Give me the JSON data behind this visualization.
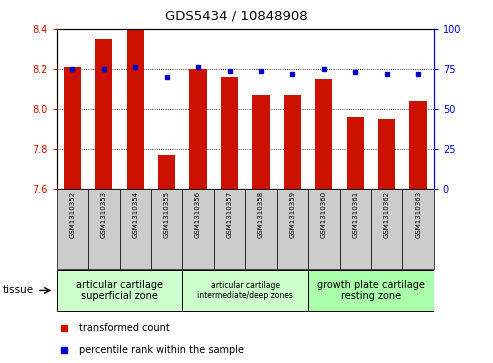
{
  "title": "GDS5434 / 10848908",
  "samples": [
    "GSM1310352",
    "GSM1310353",
    "GSM1310354",
    "GSM1310355",
    "GSM1310356",
    "GSM1310357",
    "GSM1310358",
    "GSM1310359",
    "GSM1310360",
    "GSM1310361",
    "GSM1310362",
    "GSM1310363"
  ],
  "bar_values": [
    8.21,
    8.35,
    8.4,
    7.77,
    8.2,
    8.16,
    8.07,
    8.07,
    8.15,
    7.96,
    7.95,
    8.04
  ],
  "percentile_values": [
    75,
    75,
    76,
    70,
    76,
    74,
    74,
    72,
    75,
    73,
    72,
    72
  ],
  "ylim_left": [
    7.6,
    8.4
  ],
  "ylim_right": [
    0,
    100
  ],
  "yticks_left": [
    7.6,
    7.8,
    8.0,
    8.2,
    8.4
  ],
  "yticks_right": [
    0,
    25,
    50,
    75,
    100
  ],
  "bar_color": "#cc1100",
  "dot_color": "#0000cc",
  "sample_bg_color": "#cccccc",
  "tissue_groups": [
    {
      "label": "articular cartilage\nsuperficial zone",
      "start": 0,
      "end": 3,
      "color": "#ccffcc",
      "fontsize": 7
    },
    {
      "label": "articular cartilage\nintermediate/deep zones",
      "start": 4,
      "end": 7,
      "color": "#ccffcc",
      "fontsize": 5.5
    },
    {
      "label": "growth plate cartilage\nresting zone",
      "start": 8,
      "end": 11,
      "color": "#aaffaa",
      "fontsize": 7
    }
  ],
  "legend_bar_label": "transformed count",
  "legend_dot_label": "percentile rank within the sample",
  "tissue_label": "tissue",
  "left_axis_color": "#cc1100",
  "right_axis_color": "#0000cc"
}
